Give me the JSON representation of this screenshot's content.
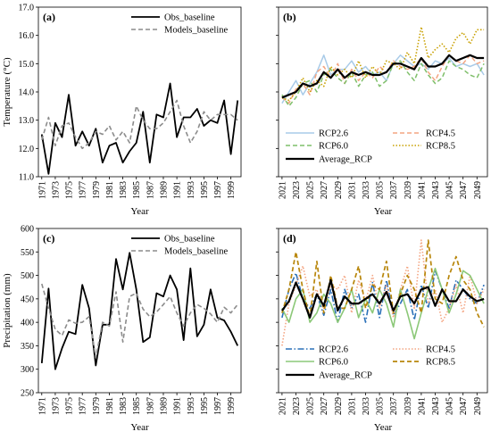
{
  "chart_data": [
    {
      "panel": "(a)",
      "type": "line",
      "xlabel": "Year",
      "ylabel": "Temperature (°C)",
      "ylim": [
        11.0,
        17.0
      ],
      "yticks": [
        "11.0",
        "12.0",
        "13.0",
        "14.0",
        "15.0",
        "16.0",
        "17.0"
      ],
      "xlim": [
        1971,
        2000
      ],
      "xticks": [
        "1971",
        "1973",
        "1975",
        "1977",
        "1979",
        "1981",
        "1983",
        "1985",
        "1987",
        "1989",
        "1991",
        "1993",
        "1995",
        "1997",
        "1999"
      ],
      "legend_position": "top-right",
      "x": [
        1971,
        1972,
        1973,
        1974,
        1975,
        1976,
        1977,
        1978,
        1979,
        1980,
        1981,
        1982,
        1983,
        1984,
        1985,
        1986,
        1987,
        1988,
        1989,
        1990,
        1991,
        1992,
        1993,
        1994,
        1995,
        1996,
        1997,
        1998,
        1999,
        2000
      ],
      "series": [
        {
          "name": "Obs_baseline",
          "color": "#000000",
          "style": "solid",
          "width": 1.8,
          "values": [
            12.5,
            11.1,
            12.9,
            12.4,
            13.9,
            12.1,
            12.6,
            12.1,
            12.7,
            11.5,
            12.1,
            12.2,
            11.5,
            11.9,
            12.2,
            13.3,
            11.5,
            13.2,
            13.1,
            14.3,
            12.4,
            13.1,
            13.1,
            13.4,
            12.8,
            13.0,
            12.9,
            13.7,
            11.8,
            13.7
          ]
        },
        {
          "name": "Models_baseline",
          "color": "#8c8c8c",
          "style": "dashed",
          "width": 1.6,
          "values": [
            12.3,
            13.1,
            12.1,
            12.8,
            12.9,
            12.4,
            12.0,
            12.2,
            12.6,
            12.5,
            12.8,
            12.3,
            12.6,
            12.2,
            13.5,
            13.0,
            12.7,
            12.7,
            12.9,
            13.3,
            13.7,
            12.8,
            12.2,
            12.6,
            13.3,
            13.0,
            13.2,
            13.2,
            13.2,
            13.0
          ]
        }
      ]
    },
    {
      "panel": "(b)",
      "type": "line",
      "xlabel": "Year",
      "ylim": [
        11.0,
        17.0
      ],
      "xlim": [
        2021,
        2050
      ],
      "xticks": [
        "2021",
        "2023",
        "2025",
        "2027",
        "2029",
        "2031",
        "2033",
        "2035",
        "2037",
        "2039",
        "2041",
        "2043",
        "2045",
        "2047",
        "2049"
      ],
      "legend_position": "bottom",
      "x": [
        2021,
        2022,
        2023,
        2024,
        2025,
        2026,
        2027,
        2028,
        2029,
        2030,
        2031,
        2032,
        2033,
        2034,
        2035,
        2036,
        2037,
        2038,
        2039,
        2040,
        2041,
        2042,
        2043,
        2044,
        2045,
        2046,
        2047,
        2048,
        2049,
        2050
      ],
      "series": [
        {
          "name": "RCP2.6",
          "color": "#a9cbe8",
          "style": "solid",
          "width": 1.5,
          "values": [
            13.6,
            14.0,
            14.4,
            13.9,
            14.3,
            14.7,
            15.3,
            14.6,
            14.8,
            14.8,
            15.1,
            14.7,
            14.9,
            14.6,
            14.7,
            14.4,
            15.0,
            15.3,
            15.1,
            14.9,
            15.0,
            14.8,
            15.1,
            15.0,
            15.2,
            14.9,
            15.0,
            14.9,
            15.0,
            14.6
          ]
        },
        {
          "name": "RCP4.5",
          "color": "#f4a582",
          "style": "dashed",
          "width": 1.5,
          "values": [
            13.8,
            13.6,
            14.1,
            14.3,
            13.9,
            14.7,
            14.9,
            14.5,
            15.0,
            14.3,
            14.8,
            14.4,
            14.7,
            14.5,
            14.9,
            14.7,
            15.1,
            14.9,
            14.8,
            14.9,
            15.2,
            14.7,
            14.4,
            14.9,
            15.3,
            15.1,
            15.0,
            15.3,
            15.0,
            15.1
          ]
        },
        {
          "name": "RCP6.0",
          "color": "#7fbf6a",
          "style": "dashed",
          "width": 1.5,
          "values": [
            13.9,
            13.5,
            13.8,
            14.3,
            14.4,
            14.0,
            14.6,
            14.8,
            14.5,
            14.3,
            14.7,
            14.2,
            14.6,
            14.7,
            14.2,
            14.4,
            15.0,
            15.1,
            14.7,
            14.4,
            15.0,
            14.6,
            14.3,
            14.5,
            15.1,
            14.9,
            14.8,
            14.6,
            14.5,
            15.0
          ]
        },
        {
          "name": "RCP8.5",
          "color": "#c8a000",
          "style": "dotted",
          "width": 1.6,
          "values": [
            13.8,
            13.7,
            14.0,
            14.5,
            14.0,
            14.4,
            14.2,
            14.9,
            14.6,
            14.8,
            14.5,
            15.1,
            14.5,
            14.9,
            14.6,
            15.1,
            15.0,
            14.8,
            15.4,
            15.0,
            16.3,
            15.2,
            15.5,
            15.7,
            15.4,
            15.9,
            16.1,
            15.7,
            16.2,
            16.2
          ]
        },
        {
          "name": "Average_RCP",
          "color": "#000000",
          "style": "solid",
          "width": 2.2,
          "values": [
            13.8,
            13.9,
            14.0,
            14.3,
            14.2,
            14.3,
            14.7,
            14.5,
            14.8,
            14.5,
            14.7,
            14.6,
            14.7,
            14.6,
            14.6,
            14.7,
            15.0,
            15.0,
            14.9,
            14.8,
            15.2,
            14.9,
            14.9,
            15.0,
            15.3,
            15.1,
            15.2,
            15.3,
            15.2,
            15.2
          ]
        }
      ]
    },
    {
      "panel": "(c)",
      "type": "line",
      "xlabel": "Year",
      "ylabel": "Precipitation (mm)",
      "ylim": [
        250,
        600
      ],
      "yticks": [
        "250",
        "300",
        "350",
        "400",
        "450",
        "500",
        "550",
        "600"
      ],
      "xlim": [
        1971,
        2000
      ],
      "xticks": [
        "1971",
        "1973",
        "1975",
        "1977",
        "1979",
        "1981",
        "1983",
        "1985",
        "1987",
        "1989",
        "1991",
        "1993",
        "1995",
        "1997",
        "1999"
      ],
      "legend_position": "top-right",
      "x": [
        1971,
        1972,
        1973,
        1974,
        1975,
        1976,
        1977,
        1978,
        1979,
        1980,
        1981,
        1982,
        1983,
        1984,
        1985,
        1986,
        1987,
        1988,
        1989,
        1990,
        1991,
        1992,
        1993,
        1994,
        1995,
        1996,
        1997,
        1998,
        1999,
        2000
      ],
      "series": [
        {
          "name": "Obs_baseline",
          "color": "#000000",
          "style": "solid",
          "width": 1.8,
          "values": [
            313,
            472,
            300,
            345,
            380,
            375,
            480,
            430,
            308,
            395,
            395,
            535,
            470,
            548,
            470,
            358,
            368,
            462,
            455,
            500,
            470,
            362,
            515,
            370,
            395,
            470,
            410,
            404,
            380,
            350
          ]
        },
        {
          "name": "Models_baseline",
          "color": "#8c8c8c",
          "style": "dashed",
          "width": 1.6,
          "values": [
            482,
            430,
            385,
            372,
            405,
            398,
            400,
            412,
            325,
            400,
            392,
            465,
            358,
            455,
            462,
            428,
            412,
            422,
            438,
            455,
            420,
            392,
            420,
            438,
            430,
            418,
            400,
            432,
            420,
            438
          ]
        }
      ]
    },
    {
      "panel": "(d)",
      "type": "line",
      "xlabel": "Year",
      "ylim": [
        250,
        600
      ],
      "xlim": [
        2021,
        2050
      ],
      "xticks": [
        "2021",
        "2023",
        "2025",
        "2027",
        "2029",
        "2031",
        "2033",
        "2035",
        "2037",
        "2039",
        "2041",
        "2043",
        "2045",
        "2047",
        "2049"
      ],
      "legend_position": "bottom",
      "x": [
        2021,
        2022,
        2023,
        2024,
        2025,
        2026,
        2027,
        2028,
        2029,
        2030,
        2031,
        2032,
        2033,
        2034,
        2035,
        2036,
        2037,
        2038,
        2039,
        2040,
        2041,
        2042,
        2043,
        2044,
        2045,
        2046,
        2047,
        2048,
        2049,
        2050
      ],
      "series": [
        {
          "name": "RCP2.6",
          "color": "#2a70b8",
          "style": "dashdot",
          "width": 1.6,
          "values": [
            410,
            470,
            505,
            450,
            430,
            460,
            415,
            470,
            400,
            470,
            430,
            460,
            400,
            485,
            410,
            490,
            415,
            440,
            470,
            405,
            480,
            430,
            510,
            470,
            430,
            490,
            470,
            450,
            440,
            480
          ]
        },
        {
          "name": "RCP4.5",
          "color": "#f4a582",
          "style": "dotted",
          "width": 1.6,
          "values": [
            350,
            440,
            480,
            520,
            455,
            470,
            430,
            480,
            470,
            500,
            420,
            490,
            445,
            500,
            430,
            480,
            410,
            470,
            520,
            430,
            575,
            440,
            470,
            400,
            430,
            480,
            420,
            500,
            440,
            470
          ]
        },
        {
          "name": "RCP6.0",
          "color": "#8cc878",
          "style": "solid",
          "width": 1.6,
          "values": [
            430,
            400,
            450,
            470,
            400,
            420,
            460,
            440,
            400,
            430,
            470,
            410,
            450,
            420,
            470,
            440,
            390,
            470,
            420,
            365,
            420,
            470,
            515,
            470,
            420,
            460,
            510,
            500,
            470,
            440
          ]
        },
        {
          "name": "RCP8.5",
          "color": "#b8860b",
          "style": "dashed",
          "width": 1.7,
          "values": [
            420,
            470,
            550,
            470,
            410,
            530,
            420,
            500,
            430,
            430,
            470,
            520,
            430,
            480,
            470,
            530,
            420,
            460,
            500,
            470,
            420,
            575,
            450,
            440,
            500,
            540,
            490,
            470,
            420,
            390
          ]
        },
        {
          "name": "Average_RCP",
          "color": "#000000",
          "style": "solid",
          "width": 2.2,
          "values": [
            425,
            445,
            485,
            450,
            410,
            460,
            435,
            490,
            425,
            455,
            440,
            440,
            450,
            460,
            440,
            465,
            425,
            455,
            460,
            440,
            470,
            475,
            435,
            470,
            445,
            445,
            470,
            455,
            445,
            450
          ]
        }
      ]
    }
  ]
}
